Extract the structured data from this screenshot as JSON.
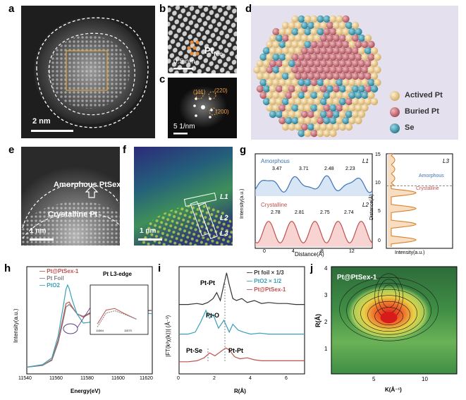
{
  "panel_letters": [
    "a",
    "b",
    "c",
    "d",
    "e",
    "f",
    "g",
    "h",
    "i",
    "j"
  ],
  "panel_a": {
    "scale": "2 nm"
  },
  "panel_b": {
    "scale": "0.5 nm",
    "label": "Pt",
    "label_sub": "fcc"
  },
  "panel_c": {
    "scale": "5 1/nm",
    "spots": [
      "(111)",
      "(220)",
      "(200)"
    ]
  },
  "panel_d": {
    "legend": [
      "Actived Pt",
      "Buried Pt",
      "Se"
    ],
    "colors": {
      "actived": "#e9c98f",
      "buried": "#c9707a",
      "se": "#3e9bb0",
      "bg": "#e4e0ee"
    }
  },
  "panel_e": {
    "scale": "1 nm",
    "amorphous": "Amorphous PtSex",
    "crystalline": "Crystalline Pt"
  },
  "panel_f": {
    "scale": "1 nm",
    "lines": [
      "L1",
      "L2",
      "L3"
    ]
  },
  "panel_g": {
    "ylabel": "Intensity(a.u.)",
    "xlabel": "Distance(Å)",
    "amorphous_label": "Amorphous",
    "crystalline_label": "Crystalline",
    "l1": "L1",
    "l2": "L2",
    "l3": "L3",
    "amorphous_spacings": [
      "3.47",
      "3.71",
      "2.48",
      "2.23"
    ],
    "crystalline_spacings": [
      "2.78",
      "2.81",
      "2.75",
      "2.74"
    ],
    "x_ticks": [
      "0",
      "4",
      "8",
      "12"
    ],
    "right_ylabel": "Distance(Å)",
    "right_xlabel": "Intensity(a.u.)",
    "right_y_ticks": [
      "0",
      "5",
      "10",
      "15"
    ],
    "right_amorphous": "Amorphous",
    "right_crystalline": "Crystalline"
  },
  "chart_data": [
    {
      "id": "h",
      "type": "line",
      "title": "Pt L3-edge",
      "xlabel": "Energy(eV)",
      "ylabel": "Intensity(a.u.)",
      "xlim": [
        11540,
        11620
      ],
      "x_ticks": [
        "11540",
        "11560",
        "11580",
        "11600",
        "11620"
      ],
      "legend": [
        "Pt@PtSex-1",
        "Pt Foil",
        "PtO2"
      ],
      "series": [
        {
          "name": "Pt@PtSex-1",
          "color": "#c0504d",
          "x": [
            11540,
            11550,
            11556,
            11560,
            11563,
            11565,
            11567,
            11569,
            11572,
            11576,
            11580,
            11585,
            11590,
            11595,
            11600,
            11605,
            11610,
            11615,
            11620
          ],
          "y": [
            0.03,
            0.05,
            0.12,
            0.35,
            0.6,
            0.78,
            0.8,
            0.74,
            0.66,
            0.62,
            0.66,
            0.7,
            0.68,
            0.66,
            0.68,
            0.7,
            0.7,
            0.69,
            0.7
          ]
        },
        {
          "name": "Pt Foil",
          "color": "#808080",
          "x": [
            11540,
            11550,
            11556,
            11560,
            11563,
            11565,
            11567,
            11569,
            11572,
            11576,
            11580,
            11585,
            11590,
            11595,
            11600,
            11605,
            11610,
            11615,
            11620
          ],
          "y": [
            0.03,
            0.05,
            0.11,
            0.32,
            0.56,
            0.74,
            0.77,
            0.73,
            0.66,
            0.63,
            0.67,
            0.71,
            0.69,
            0.66,
            0.68,
            0.71,
            0.71,
            0.7,
            0.7
          ]
        },
        {
          "name": "PtO2",
          "color": "#3aa0b8",
          "x": [
            11540,
            11550,
            11556,
            11560,
            11563,
            11565,
            11566,
            11567,
            11569,
            11572,
            11576,
            11580,
            11585,
            11590,
            11595,
            11600,
            11605,
            11610,
            11615,
            11620
          ],
          "y": [
            0.03,
            0.06,
            0.14,
            0.4,
            0.72,
            0.95,
            1.0,
            0.96,
            0.82,
            0.66,
            0.55,
            0.56,
            0.62,
            0.66,
            0.6,
            0.58,
            0.63,
            0.68,
            0.67,
            0.66
          ]
        }
      ],
      "inset_ticks": [
        "11564",
        "11570"
      ]
    },
    {
      "id": "i",
      "type": "line",
      "xlabel": "R(Å)",
      "ylabel": "|FT(k²χ(k))| (Å⁻³)",
      "xlim": [
        0,
        7
      ],
      "x_ticks": [
        "0",
        "2",
        "4",
        "6"
      ],
      "legend": [
        "Pt foil × 1/3",
        "PtO2 × 1/2",
        "Pt@PtSex-1"
      ],
      "annotations": [
        "Pt-Pt",
        "Pt-O",
        "Pt-Se",
        "Pt-Pt"
      ],
      "series": [
        {
          "name": "Pt foil × 1/3",
          "color": "#333333",
          "x": [
            0,
            0.5,
            1.0,
            1.3,
            1.6,
            1.9,
            2.1,
            2.3,
            2.5,
            2.65,
            2.8,
            3.0,
            3.2,
            3.5,
            3.8,
            4.2,
            4.6,
            5.0,
            5.5,
            6.0,
            6.5,
            7.0
          ],
          "y": [
            0.66,
            0.66,
            0.67,
            0.66,
            0.68,
            0.72,
            0.78,
            0.7,
            0.86,
            0.98,
            0.86,
            0.72,
            0.7,
            0.72,
            0.68,
            0.7,
            0.67,
            0.68,
            0.67,
            0.67,
            0.66,
            0.66
          ]
        },
        {
          "name": "PtO2 × 1/2",
          "color": "#3aa0b8",
          "x": [
            0,
            0.5,
            0.9,
            1.2,
            1.5,
            1.7,
            1.9,
            2.2,
            2.5,
            2.8,
            3.0,
            3.3,
            3.6,
            4.0,
            4.5,
            5.0,
            5.5,
            6.0,
            6.5,
            7.0
          ],
          "y": [
            0.36,
            0.36,
            0.38,
            0.48,
            0.6,
            0.52,
            0.56,
            0.42,
            0.5,
            0.38,
            0.46,
            0.4,
            0.38,
            0.36,
            0.37,
            0.36,
            0.36,
            0.36,
            0.36,
            0.36
          ]
        },
        {
          "name": "Pt@PtSex-1",
          "color": "#c0504d",
          "x": [
            0,
            0.5,
            1.0,
            1.4,
            1.7,
            2.0,
            2.3,
            2.6,
            2.8,
            3.1,
            3.4,
            3.8,
            4.2,
            4.6,
            5.0,
            5.5,
            6.0,
            6.5,
            7.0
          ],
          "y": [
            0.08,
            0.08,
            0.09,
            0.12,
            0.17,
            0.14,
            0.18,
            0.22,
            0.2,
            0.13,
            0.11,
            0.12,
            0.1,
            0.09,
            0.09,
            0.09,
            0.09,
            0.09,
            0.09
          ]
        }
      ]
    },
    {
      "id": "j",
      "type": "heatmap",
      "title": "Pt@PtSex-1",
      "xlabel": "K(Å⁻¹)",
      "ylabel": "R(Å)",
      "xlim": [
        1,
        13
      ],
      "ylim": [
        0,
        4
      ],
      "x_ticks": [
        "5",
        "10"
      ],
      "y_ticks": [
        "1",
        "2",
        "3",
        "4"
      ],
      "peak": {
        "k": 6.5,
        "r": 2.1
      },
      "secondary_peak": {
        "k": 6.5,
        "r": 2.9
      }
    }
  ]
}
